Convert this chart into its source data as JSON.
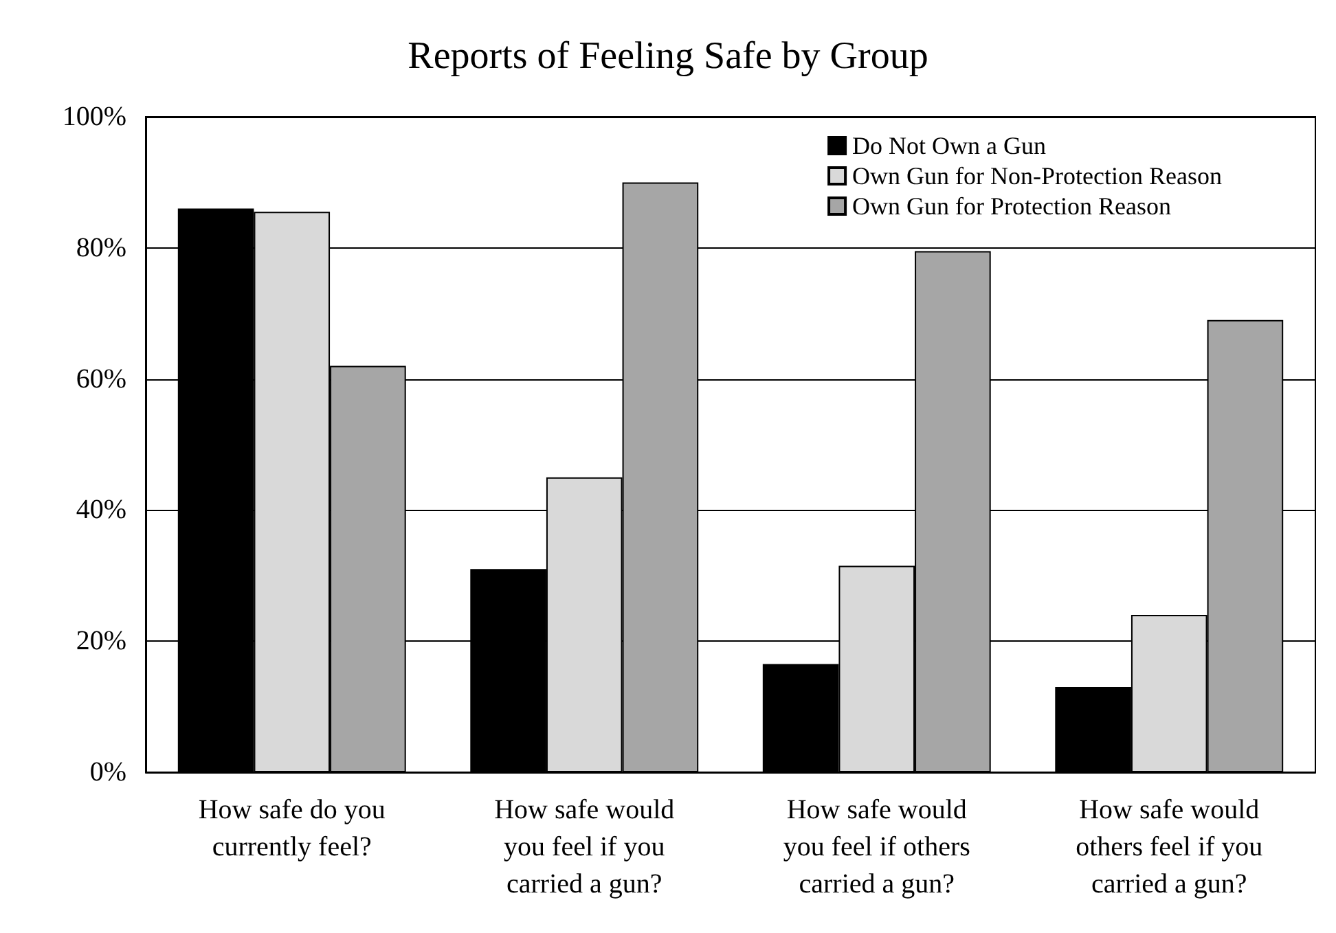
{
  "chart_data": {
    "type": "bar",
    "title": "Reports of Feeling Safe by Group",
    "categories": [
      "How safe do you\ncurrently feel?",
      "How safe would\nyou feel if you\ncarried a gun?",
      "How safe would\nyou feel if others\ncarried a gun?",
      "How safe would\nothers feel if you\ncarried a gun?"
    ],
    "series": [
      {
        "name": "Do Not Own a Gun",
        "color": "#000000",
        "values": [
          86,
          31,
          16.5,
          13
        ]
      },
      {
        "name": "Own Gun for Non-Protection Reason",
        "color": "#d9d9d9",
        "values": [
          85.5,
          45,
          31.5,
          24
        ]
      },
      {
        "name": "Own Gun for Protection Reason",
        "color": "#a6a6a6",
        "values": [
          62,
          90,
          79.5,
          69
        ]
      }
    ],
    "ylim": [
      0,
      100
    ],
    "yticks": [
      {
        "value": 0,
        "label": "0%"
      },
      {
        "value": 20,
        "label": "20%"
      },
      {
        "value": 40,
        "label": "40%"
      },
      {
        "value": 60,
        "label": "60%"
      },
      {
        "value": 80,
        "label": "80%"
      },
      {
        "value": 100,
        "label": "100%"
      }
    ],
    "grid": "y",
    "legend": "top right"
  }
}
